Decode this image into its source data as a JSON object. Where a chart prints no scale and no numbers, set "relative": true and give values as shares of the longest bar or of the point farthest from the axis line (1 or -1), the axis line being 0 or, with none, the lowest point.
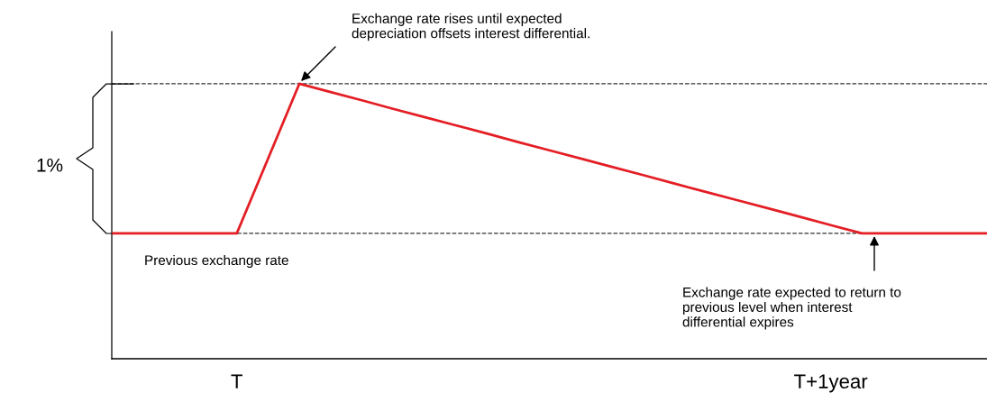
{
  "chart_data": {
    "type": "line",
    "relative": true,
    "categories": [
      null,
      null,
      null,
      null,
      "T",
      null,
      null,
      null,
      null,
      null,
      null,
      null,
      null,
      null,
      null,
      null,
      null,
      null,
      null,
      null,
      null,
      null,
      null,
      "T+1year",
      null,
      null,
      null,
      null,
      null
    ],
    "series": [
      {
        "color": "#e31e24",
        "values": [
          0.456,
          0.456,
          0.456,
          0.456,
          0.456,
          0.728,
          1,
          0.97,
          0.94,
          0.909,
          0.879,
          0.849,
          0.819,
          0.788,
          0.758,
          0.728,
          0.698,
          0.668,
          0.637,
          0.607,
          0.577,
          0.547,
          0.517,
          0.486,
          0.456,
          0.456,
          0.456,
          0.456,
          0.456
        ]
      }
    ],
    "ref_lines": [
      {
        "axis": "y",
        "value": 1,
        "color": "#333333",
        "line_style": "dashed"
      },
      {
        "axis": "y",
        "value": 0.456,
        "color": "#333333",
        "line_style": "dashed"
      }
    ],
    "annotations": [
      "Exchange rate rises until expected\ndepreciation offsets interest differential.",
      "Previous exchange rate",
      "Exchange rate expected to return to\nprevious level when interest\ndifferential expires",
      "1%"
    ],
    "grid": false,
    "legend": false,
    "marker": "none",
    "line_style": "solid"
  }
}
